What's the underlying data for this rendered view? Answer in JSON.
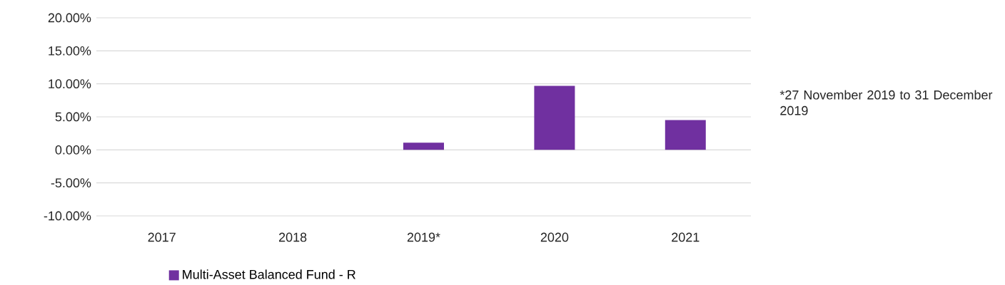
{
  "chart_data": {
    "type": "bar",
    "categories": [
      "2017",
      "2018",
      "2019*",
      "2020",
      "2021"
    ],
    "series": [
      {
        "name": "Multi-Asset Balanced Fund - R",
        "color": "#7030a0",
        "values": [
          null,
          null,
          1.1,
          9.7,
          4.5
        ]
      }
    ],
    "ylim": [
      -10,
      20
    ],
    "yticks": [
      {
        "value": -10,
        "label": "-10.00%"
      },
      {
        "value": -5,
        "label": "-5.00%"
      },
      {
        "value": 0,
        "label": "0.00%"
      },
      {
        "value": 5,
        "label": "5.00%"
      },
      {
        "value": 10,
        "label": "10.00%"
      },
      {
        "value": 15,
        "label": "15.00%"
      },
      {
        "value": 20,
        "label": "20.00%"
      }
    ],
    "grid": "y",
    "legend": "bottom",
    "annotations": [
      "*27 November 2019 to 31 December 2019"
    ]
  }
}
